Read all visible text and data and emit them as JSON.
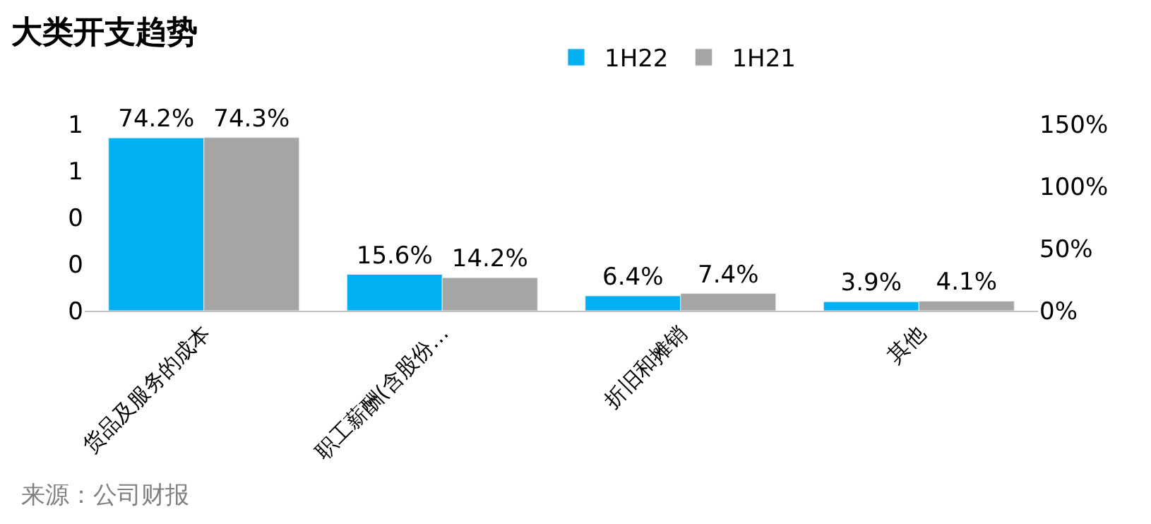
{
  "chart_data": {
    "type": "bar",
    "title": "大类开支趋势",
    "categories": [
      "货品及服务的成本",
      "职工薪酬(含股份…",
      "折旧和摊销",
      "其他"
    ],
    "series": [
      {
        "name": "1H22",
        "color": "#00b0f0",
        "values": [
          0.742,
          0.156,
          0.064,
          0.039
        ],
        "value_labels": [
          "74.2%",
          "15.6%",
          "6.4%",
          "3.9%"
        ]
      },
      {
        "name": "1H21",
        "color": "#a5a5a5",
        "values": [
          0.743,
          0.142,
          0.074,
          0.041
        ],
        "value_labels": [
          "74.3%",
          "14.2%",
          "7.4%",
          "4.1%"
        ]
      }
    ],
    "ylim": [
      0,
      0.8
    ],
    "yticks": [
      {
        "value": 0,
        "label": "0"
      },
      {
        "value": 0.2,
        "label": "0"
      },
      {
        "value": 0.4,
        "label": "0"
      },
      {
        "value": 0.6,
        "label": "1"
      },
      {
        "value": 0.8,
        "label": "1"
      }
    ],
    "y2lim": [
      0,
      150
    ],
    "y2ticks": [
      {
        "value": 0,
        "label": "0%"
      },
      {
        "value": 50,
        "label": "50%"
      },
      {
        "value": 100,
        "label": "100%"
      },
      {
        "value": 150,
        "label": "150%"
      }
    ],
    "legend": "top",
    "grid": false,
    "annotations": [
      "来源：公司财报"
    ]
  }
}
